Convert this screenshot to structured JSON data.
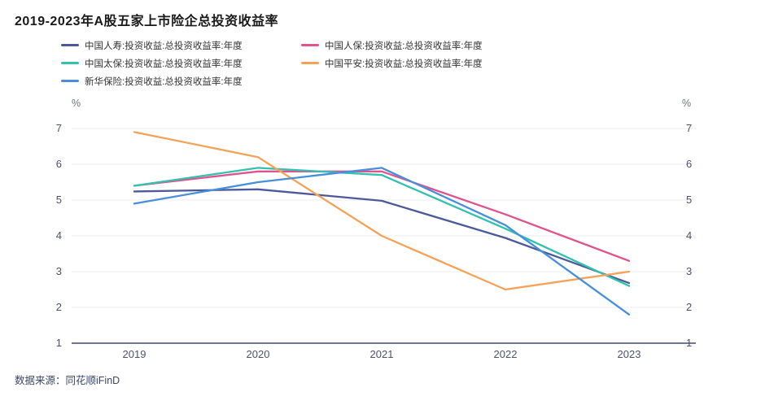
{
  "title": "2019-2023年A股五家上市险企总投资收益率",
  "source": {
    "text": "数据来源：同花顺iFinD"
  },
  "unit": "%",
  "colors": {
    "axis_line": "#3f4a73",
    "grid_line": "#ececf2",
    "tick_text": "#4d5468",
    "title_text": "#1a1a1a"
  },
  "chart_data": {
    "type": "line",
    "categories": [
      "2019",
      "2020",
      "2021",
      "2022",
      "2023"
    ],
    "series": [
      {
        "name": "中国人寿:投资收益:总投资收益率:年度",
        "color": "#4C599B",
        "values": [
          5.24,
          5.3,
          4.98,
          3.94,
          2.68
        ]
      },
      {
        "name": "中国人保:投资收益:总投资收益率:年度",
        "color": "#E0538F",
        "values": [
          5.4,
          5.8,
          5.8,
          4.6,
          3.3
        ]
      },
      {
        "name": "中国太保:投资收益:总投资收益率:年度",
        "color": "#32C0AF",
        "values": [
          5.4,
          5.9,
          5.7,
          4.2,
          2.6
        ]
      },
      {
        "name": "中国平安:投资收益:总投资收益率:年度",
        "color": "#F4A258",
        "values": [
          6.9,
          6.2,
          4.0,
          2.5,
          3.0
        ]
      },
      {
        "name": "新华保险:投资收益:总投资收益率:年度",
        "color": "#478FDB",
        "values": [
          4.9,
          5.5,
          5.9,
          4.3,
          1.8
        ]
      }
    ],
    "title": "2019-2023年A股五家上市险企总投资收益率",
    "xlabel": "",
    "ylabel": "%",
    "yticks": [
      7,
      6,
      5,
      4,
      3,
      2,
      1
    ],
    "ylim": [
      1,
      7
    ],
    "grid": true,
    "legend_position": "top"
  }
}
